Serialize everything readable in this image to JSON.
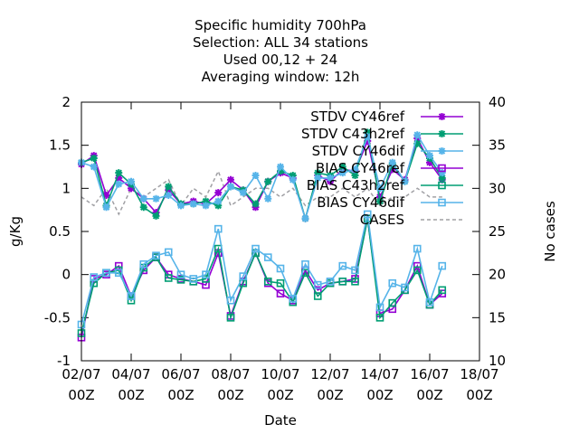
{
  "chart_data": {
    "type": "line",
    "title_lines": [
      "Specific humidity 700hPa",
      "Selection: ALL      34 stations",
      "Used  00,12  + 24",
      "Averaging window: 12h"
    ],
    "xlabel": "Date",
    "ylabel": "g/Kg",
    "y2label": "No cases",
    "xlim": [
      0,
      32
    ],
    "ylim": [
      -1,
      2
    ],
    "y2lim": [
      10,
      40
    ],
    "xticks": [
      {
        "x": 0,
        "line1": "02/07",
        "line2": "00Z"
      },
      {
        "x": 4,
        "line1": "04/07",
        "line2": "00Z"
      },
      {
        "x": 8,
        "line1": "06/07",
        "line2": "00Z"
      },
      {
        "x": 12,
        "line1": "08/07",
        "line2": "00Z"
      },
      {
        "x": 16,
        "line1": "10/07",
        "line2": "00Z"
      },
      {
        "x": 20,
        "line1": "12/07",
        "line2": "00Z"
      },
      {
        "x": 24,
        "line1": "14/07",
        "line2": "00Z"
      },
      {
        "x": 28,
        "line1": "16/07",
        "line2": "00Z"
      },
      {
        "x": 32,
        "line1": "18/07",
        "line2": "00Z"
      }
    ],
    "yticks": [
      "-1",
      "-0.5",
      "0",
      "0.5",
      "1",
      "1.5",
      "2"
    ],
    "y2ticks": [
      "10",
      "15",
      "20",
      "25",
      "30",
      "35",
      "40"
    ],
    "x": [
      0,
      1,
      2,
      3,
      4,
      5,
      6,
      7,
      8,
      9,
      10,
      11,
      12,
      13,
      14,
      15,
      16,
      17,
      18,
      19,
      20,
      21,
      22,
      23,
      24,
      25,
      26,
      27,
      28,
      29
    ],
    "legend_position": "top-right",
    "series": [
      {
        "name": "STDV CY46ref",
        "color": "#9400d3",
        "marker": "star",
        "axis": "y",
        "values": [
          1.28,
          1.38,
          0.92,
          1.12,
          1.0,
          0.88,
          0.72,
          0.98,
          0.82,
          0.85,
          0.82,
          0.95,
          1.1,
          0.98,
          0.78,
          1.08,
          1.18,
          1.12,
          0.65,
          1.15,
          1.08,
          1.22,
          1.2,
          1.55,
          0.9,
          1.22,
          1.1,
          1.58,
          1.3,
          1.1
        ]
      },
      {
        "name": "STDV C43h2ref",
        "color": "#009e73",
        "marker": "star",
        "axis": "y",
        "values": [
          1.3,
          1.35,
          0.8,
          1.18,
          1.05,
          0.78,
          0.68,
          1.02,
          0.82,
          0.82,
          0.85,
          0.8,
          1.02,
          0.98,
          0.82,
          1.08,
          1.2,
          1.15,
          0.65,
          1.18,
          1.15,
          1.25,
          1.15,
          1.65,
          0.85,
          1.28,
          1.08,
          1.52,
          1.35,
          1.12
        ]
      },
      {
        "name": "STDV CY46dif",
        "color": "#56b4e9",
        "marker": "star",
        "axis": "y",
        "values": [
          1.3,
          1.25,
          0.78,
          1.05,
          1.08,
          0.88,
          0.88,
          0.92,
          0.8,
          0.82,
          0.8,
          0.85,
          1.02,
          0.95,
          1.15,
          0.88,
          1.25,
          1.1,
          0.65,
          1.12,
          1.12,
          1.18,
          1.22,
          1.6,
          1.0,
          1.3,
          1.08,
          1.62,
          1.38,
          1.18
        ]
      },
      {
        "name": "BIAS CY46ref",
        "color": "#9400d3",
        "marker": "square",
        "axis": "y",
        "values": [
          -0.73,
          -0.05,
          0.0,
          0.1,
          -0.25,
          0.05,
          0.2,
          0.0,
          -0.05,
          -0.08,
          -0.12,
          0.25,
          -0.48,
          -0.08,
          0.25,
          -0.1,
          -0.22,
          -0.3,
          0.05,
          -0.18,
          -0.1,
          -0.08,
          -0.05,
          0.65,
          -0.45,
          -0.4,
          -0.18,
          0.1,
          -0.35,
          -0.22
        ]
      },
      {
        "name": "BIAS C43h2ref",
        "color": "#009e73",
        "marker": "square",
        "axis": "y",
        "values": [
          -0.68,
          -0.1,
          0.02,
          0.05,
          -0.3,
          0.08,
          0.2,
          -0.04,
          -0.06,
          -0.08,
          -0.05,
          0.3,
          -0.5,
          -0.1,
          0.25,
          -0.08,
          -0.1,
          -0.32,
          0.02,
          -0.25,
          -0.1,
          -0.08,
          -0.08,
          0.65,
          -0.5,
          -0.33,
          -0.18,
          0.05,
          -0.35,
          -0.18
        ]
      },
      {
        "name": "BIAS CY46dif",
        "color": "#56b4e9",
        "marker": "square",
        "axis": "y",
        "values": [
          -0.58,
          -0.03,
          0.02,
          0.02,
          -0.25,
          0.12,
          0.22,
          0.26,
          0.0,
          -0.05,
          0.0,
          0.53,
          -0.3,
          -0.02,
          0.3,
          0.2,
          0.07,
          -0.28,
          0.12,
          -0.12,
          -0.08,
          0.1,
          0.05,
          0.7,
          -0.38,
          -0.1,
          -0.15,
          0.3,
          -0.32,
          0.1
        ]
      },
      {
        "name": "CASES",
        "color": "#a0a0a4",
        "marker": "none",
        "dashed": true,
        "axis": "y2",
        "values": [
          29,
          28,
          30,
          27,
          30,
          29,
          30,
          31,
          28,
          30,
          29,
          32,
          28,
          29,
          30,
          30,
          29,
          30,
          28,
          29,
          29,
          30,
          29,
          30,
          28,
          29,
          29,
          30,
          29,
          29
        ]
      }
    ]
  }
}
